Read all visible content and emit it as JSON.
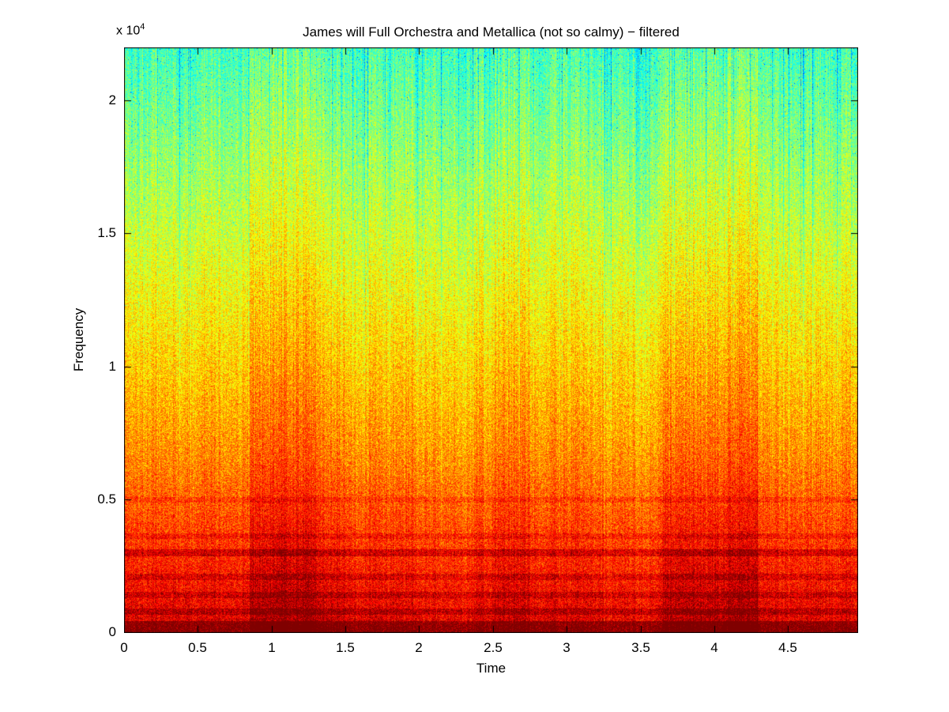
{
  "chart_data": {
    "type": "heatmap",
    "subtype": "spectrogram",
    "title": "James will Full Orchestra and Metallica (not so calmy) − filtered",
    "xlabel": "Time",
    "ylabel": "Frequency",
    "y_axis_multiplier": {
      "text": "x 10",
      "exponent": "4"
    },
    "xlim": [
      0,
      4.97
    ],
    "ylim": [
      0,
      22000
    ],
    "xticks": [
      {
        "v": 0,
        "label": "0"
      },
      {
        "v": 0.5,
        "label": "0.5"
      },
      {
        "v": 1,
        "label": "1"
      },
      {
        "v": 1.5,
        "label": "1.5"
      },
      {
        "v": 2,
        "label": "2"
      },
      {
        "v": 2.5,
        "label": "2.5"
      },
      {
        "v": 3,
        "label": "3"
      },
      {
        "v": 3.5,
        "label": "3.5"
      },
      {
        "v": 4,
        "label": "4"
      },
      {
        "v": 4.5,
        "label": "4.5"
      }
    ],
    "yticks": [
      {
        "v": 0,
        "label": "0"
      },
      {
        "v": 0.5,
        "label": "0.5"
      },
      {
        "v": 1,
        "label": "1"
      },
      {
        "v": 1.5,
        "label": "1.5"
      },
      {
        "v": 2,
        "label": "2"
      }
    ],
    "colormap": "jet",
    "grid": false,
    "legend": "none",
    "spectrogram_model": {
      "seed": 1337,
      "value_bottom": 0.872,
      "value_top": 0.447,
      "noise": 0.085,
      "low_freq_boost": 0.045,
      "low_freq_extent": 0.3,
      "column_jitter": 0.1,
      "stripe_probability": 0.1,
      "stripe_strength": 0.06,
      "speckle_probability": 0.012,
      "speckle_strength": 0.2,
      "bands": [
        {
          "x0": 0.85,
          "x1": 1.3,
          "amp": 0.065
        },
        {
          "x0": 1.3,
          "x1": 1.5,
          "amp": 0.03
        },
        {
          "x0": 2.5,
          "x1": 2.75,
          "amp": 0.025
        },
        {
          "x0": 3.65,
          "x1": 4.3,
          "amp": 0.05
        },
        {
          "x0": 4.1,
          "x1": 4.3,
          "amp": 0.02
        },
        {
          "x0": 2.0,
          "x1": 2.35,
          "amp": -0.02
        },
        {
          "x0": 3.25,
          "x1": 3.6,
          "amp": -0.015
        }
      ],
      "harmonics": [
        {
          "d": 0.01,
          "amp": 0.1,
          "hw": 0.01
        },
        {
          "d": 0.036,
          "amp": 0.06,
          "hw": 0.005
        },
        {
          "d": 0.064,
          "amp": 0.05,
          "hw": 0.005
        },
        {
          "d": 0.095,
          "amp": 0.05,
          "hw": 0.005
        },
        {
          "d": 0.136,
          "amp": 0.08,
          "hw": 0.006
        },
        {
          "d": 0.165,
          "amp": 0.04,
          "hw": 0.005
        },
        {
          "d": 0.227,
          "amp": 0.035,
          "hw": 0.005
        }
      ]
    }
  }
}
